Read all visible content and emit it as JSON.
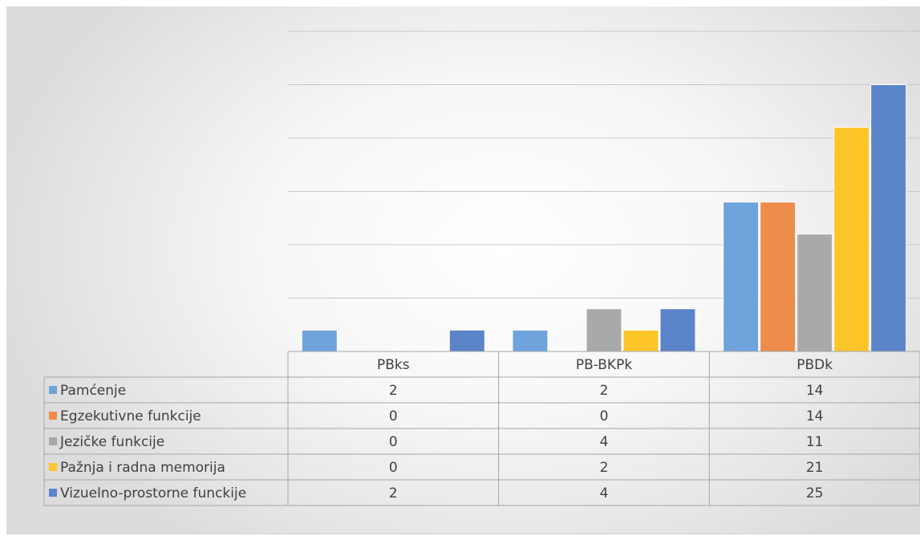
{
  "chart_data": {
    "type": "bar",
    "categories": [
      "PBks",
      "PB-BKPk",
      "PBDk"
    ],
    "series": [
      {
        "name": "Pamćenje",
        "values": [
          2,
          2,
          14
        ],
        "color": "#6fa3dc"
      },
      {
        "name": "Egzekutivne funkcije",
        "values": [
          0,
          0,
          14
        ],
        "color": "#ee8c4c"
      },
      {
        "name": "Jezičke funkcije",
        "values": [
          0,
          4,
          11
        ],
        "color": "#a9a9a9"
      },
      {
        "name": "Pažnja i radna memorija",
        "values": [
          0,
          2,
          21
        ],
        "color": "#fcc52a"
      },
      {
        "name": "Vizuelno-prostorne funckije",
        "values": [
          2,
          4,
          25
        ],
        "color": "#5b84c9"
      }
    ],
    "ylim": [
      0,
      30
    ],
    "grid": true,
    "data_table": true,
    "axis_labels_shown": false
  }
}
